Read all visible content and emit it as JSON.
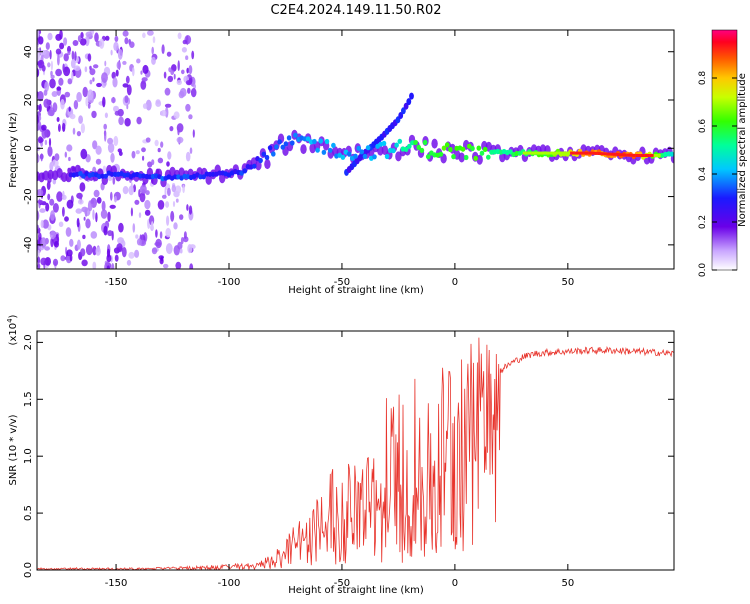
{
  "title": "C2E4.2024.149.11.50.R02",
  "colors": {
    "snr_line": "#e8342c",
    "axes": "#000000",
    "background": "#ffffff"
  },
  "chart_data": [
    {
      "type": "heatmap",
      "name": "spectrogram",
      "title": "C2E4.2024.149.11.50.R02",
      "xlabel": "Height of straight line (km)",
      "ylabel": "Frequency (Hz)",
      "xlim": [
        -185,
        97
      ],
      "ylim": [
        -50,
        49
      ],
      "x_ticks": [
        -150,
        -100,
        -50,
        0,
        50
      ],
      "y_ticks": [
        -40,
        -20,
        0,
        20,
        40
      ],
      "colorbar": {
        "label": "Normalized spectral amplitude",
        "range": [
          0.0,
          1.0
        ],
        "ticks": [
          "0.0",
          "0.2",
          "0.4",
          "0.6",
          "0.8"
        ],
        "tick_values": [
          0.0,
          0.2,
          0.4,
          0.6,
          0.8
        ]
      },
      "ridge": {
        "x": [
          -185,
          -165,
          -150,
          -130,
          -110,
          -95,
          -85,
          -75,
          -65,
          -55,
          -45,
          -35,
          -25,
          -18,
          -10,
          0,
          10,
          20,
          40,
          60,
          80,
          97
        ],
        "freq": [
          -11,
          -11,
          -11,
          -12,
          -11,
          -10,
          -5,
          2,
          3,
          0,
          -2,
          -1,
          0,
          1,
          -1,
          -1,
          -2,
          -2,
          -2,
          -2,
          -3,
          -3
        ],
        "amplitude": [
          0.25,
          0.3,
          0.3,
          0.32,
          0.3,
          0.3,
          0.3,
          0.35,
          0.4,
          0.4,
          0.38,
          0.4,
          0.45,
          0.55,
          0.6,
          0.62,
          0.6,
          0.55,
          0.6,
          0.85,
          0.85,
          0.45
        ]
      },
      "branch": {
        "x": [
          -48,
          -40,
          -32,
          -25,
          -20,
          -18
        ],
        "freq": [
          -10,
          -2,
          5,
          12,
          20,
          24
        ]
      }
    },
    {
      "type": "line",
      "name": "snr",
      "xlabel": "Height of straight line (km)",
      "ylabel": "SNR (10 * v/v)",
      "y_multiplier": "(x10",
      "y_multiplier_exp": "4",
      "y_multiplier_close": ")",
      "xlim": [
        -185,
        97
      ],
      "ylim": [
        0,
        2.1
      ],
      "x_ticks": [
        -150,
        -100,
        -50,
        0,
        50
      ],
      "y_ticks": [
        "0.0",
        "0.5",
        "1.0",
        "1.5",
        "2.0"
      ],
      "y_tick_values": [
        0.0,
        0.5,
        1.0,
        1.5,
        2.0
      ],
      "series": [
        {
          "name": "SNR",
          "x": [
            -185,
            -160,
            -140,
            -120,
            -110,
            -100,
            -90,
            -85,
            -80,
            -75,
            -70,
            -65,
            -60,
            -55,
            -50,
            -45,
            -40,
            -35,
            -30,
            -25,
            -20,
            -15,
            -10,
            -5,
            0,
            5,
            10,
            15,
            20,
            25,
            30,
            35,
            40,
            50,
            60,
            70,
            80,
            90,
            97
          ],
          "y_mean": [
            0.01,
            0.01,
            0.01,
            0.02,
            0.02,
            0.03,
            0.04,
            0.06,
            0.09,
            0.14,
            0.25,
            0.32,
            0.38,
            0.42,
            0.45,
            0.48,
            0.5,
            0.52,
            0.55,
            0.6,
            0.6,
            0.75,
            0.9,
            1.1,
            1.25,
            1.4,
            1.5,
            1.6,
            1.75,
            1.82,
            1.87,
            1.9,
            1.91,
            1.92,
            1.93,
            1.93,
            1.92,
            1.91,
            1.9
          ],
          "y_peak": [
            0.02,
            0.02,
            0.02,
            0.03,
            0.04,
            0.05,
            0.07,
            0.1,
            0.15,
            0.3,
            0.5,
            0.62,
            0.8,
            0.9,
            0.85,
            1.0,
            1.05,
            1.0,
            1.6,
            1.65,
            1.72,
            1.75,
            1.55,
            1.8,
            1.9,
            2.0,
            2.05,
            2.0,
            1.92,
            1.9,
            1.93,
            1.95,
            1.95,
            1.96,
            1.97,
            1.96,
            1.95,
            1.95,
            1.92
          ]
        }
      ]
    }
  ]
}
